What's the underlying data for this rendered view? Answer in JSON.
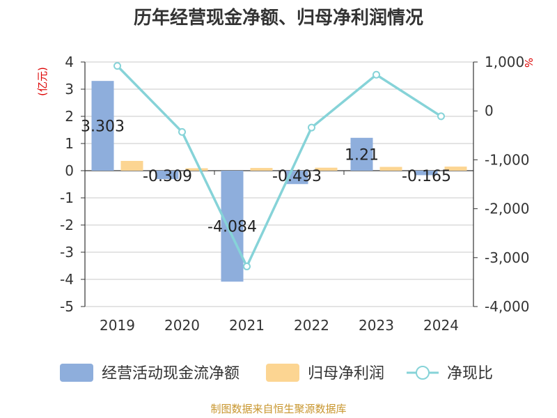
{
  "chart_data": {
    "type": "bar",
    "title": "历年经营现金净额、归母净利润情况",
    "categories": [
      "2019",
      "2020",
      "2021",
      "2022",
      "2023",
      "2024"
    ],
    "left_axis": {
      "unit": "(亿元)",
      "ylim": [
        -5,
        4
      ],
      "ticks": [
        "4",
        "3",
        "2",
        "1",
        "0",
        "-1",
        "-2",
        "-3",
        "-4",
        "-5"
      ],
      "tick_values": [
        4,
        3,
        2,
        1,
        0,
        -1,
        -2,
        -3,
        -4,
        -5
      ]
    },
    "right_axis": {
      "unit": "%",
      "ylim": [
        -4000,
        1000
      ],
      "ticks": [
        "1,000",
        "0",
        "-1,000",
        "-2,000",
        "-3,000",
        "-4,000"
      ],
      "tick_values": [
        1000,
        0,
        -1000,
        -2000,
        -3000,
        -4000
      ]
    },
    "series": [
      {
        "name": "经营活动现金流净额",
        "type": "bar",
        "axis": "left",
        "color": "#8eaedc",
        "values": [
          3.303,
          -0.309,
          -4.084,
          -0.493,
          1.21,
          -0.165
        ],
        "labels": [
          "3.303",
          "-0.309",
          "-4.084",
          "-0.493",
          "1.21",
          "-0.165"
        ]
      },
      {
        "name": "归母净利润",
        "type": "bar",
        "axis": "left",
        "color": "#fcd592",
        "values": [
          0.36,
          0.09,
          0.1,
          0.11,
          0.14,
          0.15
        ]
      },
      {
        "name": "净现比",
        "type": "line",
        "axis": "right",
        "color": "#86d3d8",
        "values": [
          920,
          -430,
          -3180,
          -340,
          740,
          -110
        ]
      }
    ],
    "grid": true,
    "legend_position": "bottom"
  },
  "footer": {
    "source": "制图数据来自恒生聚源数据库"
  }
}
